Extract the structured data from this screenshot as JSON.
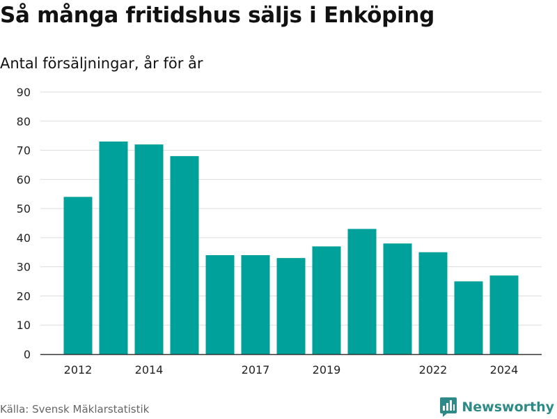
{
  "title": "Så många fritidshus säljs i Enköping",
  "subtitle": "Antal försäljningar, år för år",
  "source": "Källa: Svensk Mäklarstatistik",
  "brand": {
    "name": "Newsworthy",
    "icon": "newsworthy-logo-icon",
    "color": "#2d8a86"
  },
  "colors": {
    "bar": "#00a19a",
    "grid": "#dddddd",
    "axis": "#333333",
    "label": "#222222"
  },
  "chart_data": {
    "type": "bar",
    "categories": [
      "2012",
      "2013",
      "2014",
      "2015",
      "2016",
      "2017",
      "2018",
      "2019",
      "2020",
      "2021",
      "2022",
      "2023",
      "2024"
    ],
    "tick_labels": [
      "2012",
      "",
      "2014",
      "",
      "",
      "2017",
      "",
      "2019",
      "",
      "",
      "2022",
      "",
      "2024"
    ],
    "values": [
      54,
      73,
      72,
      68,
      34,
      34,
      33,
      37,
      43,
      38,
      35,
      25,
      27
    ],
    "yticks": [
      0,
      10,
      20,
      30,
      40,
      50,
      60,
      70,
      80,
      90
    ],
    "ylim": [
      0,
      90
    ],
    "grid": true
  }
}
